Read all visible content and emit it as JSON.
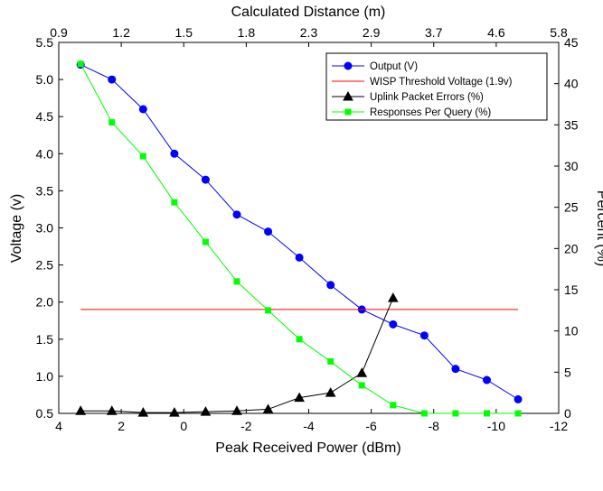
{
  "chart_data": {
    "type": "line",
    "top_axis": {
      "label": "Calculated Distance (m)",
      "ticks": [
        "0.9",
        "1.2",
        "1.5",
        "1.8",
        "2.3",
        "2.9",
        "3.7",
        "4.6",
        "5.8"
      ]
    },
    "xlabel": "Peak Received Power (dBm)",
    "xlim": [
      4,
      -12
    ],
    "xticks": [
      4,
      2,
      0,
      -2,
      -4,
      -6,
      -8,
      -10,
      -12
    ],
    "ylabel_left": "Voltage (v)",
    "ylim_left": [
      0.5,
      5.5
    ],
    "yticks_left": [
      "0.5",
      "1.0",
      "1.5",
      "2.0",
      "2.5",
      "3.0",
      "3.5",
      "4.0",
      "4.5",
      "5.0",
      "5.5"
    ],
    "ylabel_right": "Percent (%)",
    "ylim_right": [
      0,
      45
    ],
    "yticks_right": [
      "0",
      "5",
      "10",
      "15",
      "20",
      "25",
      "30",
      "35",
      "40",
      "45"
    ],
    "grid": false,
    "legend_position": "top-right",
    "series": [
      {
        "name": "Output (V)",
        "axis": "left",
        "color": "#0000ff",
        "marker": "circle",
        "points": [
          [
            3.3,
            5.2
          ],
          [
            2.3,
            5.0
          ],
          [
            1.3,
            4.6
          ],
          [
            0.3,
            4.0
          ],
          [
            -0.7,
            3.65
          ],
          [
            -1.7,
            3.18
          ],
          [
            -2.7,
            2.95
          ],
          [
            -3.7,
            2.6
          ],
          [
            -4.7,
            2.23
          ],
          [
            -5.7,
            1.9
          ],
          [
            -6.7,
            1.7
          ],
          [
            -7.7,
            1.55
          ],
          [
            -8.7,
            1.1
          ],
          [
            -9.7,
            0.95
          ],
          [
            -10.7,
            0.69
          ]
        ]
      },
      {
        "name": "WISP Threshold Voltage (1.9v)",
        "axis": "left",
        "color": "#ff0000",
        "marker": "none",
        "points": [
          [
            3.3,
            1.9
          ],
          [
            -10.7,
            1.9
          ]
        ]
      },
      {
        "name": "Uplink Packet Errors (%)",
        "axis": "right",
        "color": "#000000",
        "marker": "triangle",
        "points": [
          [
            3.3,
            0.3
          ],
          [
            2.3,
            0.3
          ],
          [
            1.3,
            0.1
          ],
          [
            0.3,
            0.1
          ],
          [
            -0.7,
            0.2
          ],
          [
            -1.7,
            0.3
          ],
          [
            -2.7,
            0.5
          ],
          [
            -3.7,
            1.9
          ],
          [
            -4.7,
            2.5
          ],
          [
            -5.7,
            4.9
          ],
          [
            -6.7,
            14.0
          ]
        ]
      },
      {
        "name": "Responses Per Query (%)",
        "axis": "right",
        "color": "#00ff00",
        "marker": "square",
        "points": [
          [
            3.3,
            42.4
          ],
          [
            2.3,
            35.3
          ],
          [
            1.3,
            31.2
          ],
          [
            0.3,
            25.6
          ],
          [
            -0.7,
            20.8
          ],
          [
            -1.7,
            16.0
          ],
          [
            -2.7,
            12.5
          ],
          [
            -3.7,
            9.0
          ],
          [
            -4.7,
            6.3
          ],
          [
            -5.7,
            3.4
          ],
          [
            -6.7,
            1.0
          ],
          [
            -7.7,
            0.0
          ],
          [
            -8.7,
            0.0
          ],
          [
            -9.7,
            0.0
          ],
          [
            -10.7,
            0.0
          ]
        ]
      }
    ]
  }
}
